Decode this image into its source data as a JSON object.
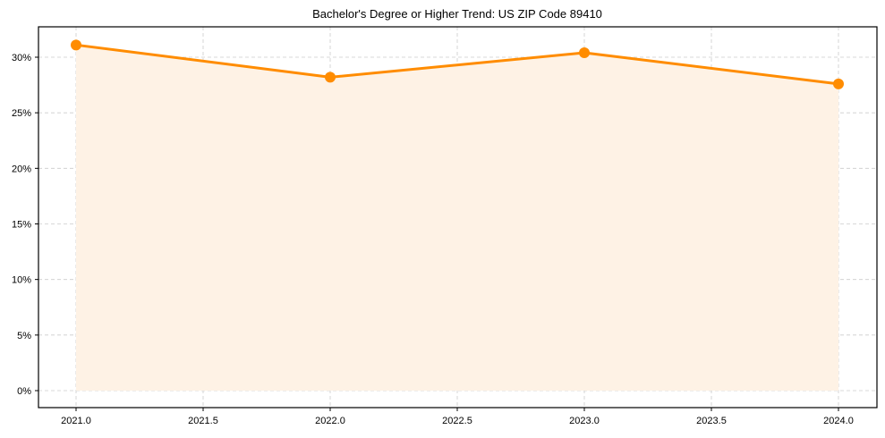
{
  "chart_data": {
    "type": "line",
    "title": "Bachelor's Degree or Higher Trend: US ZIP Code 89410",
    "xlabel": "",
    "ylabel": "",
    "x": [
      2021.0,
      2022.0,
      2023.0,
      2024.0
    ],
    "series": [
      {
        "name": "Bachelor's Degree or Higher",
        "values": [
          31.1,
          28.2,
          30.4,
          27.6
        ],
        "color": "#FF8C00",
        "fill": true,
        "fill_color": "#FEF2E5"
      }
    ],
    "xlim": [
      2020.85,
      2024.15
    ],
    "ylim": [
      -1.55,
      32.6
    ],
    "x_ticks": [
      "2021.0",
      "2021.5",
      "2022.0",
      "2022.5",
      "2023.0",
      "2023.5",
      "2024.0"
    ],
    "x_tick_values": [
      2021.0,
      2021.5,
      2022.0,
      2022.5,
      2023.0,
      2023.5,
      2024.0
    ],
    "y_ticks": [
      "0%",
      "5%",
      "10%",
      "15%",
      "20%",
      "25%",
      "30%"
    ],
    "y_tick_values": [
      0,
      5,
      10,
      15,
      20,
      25,
      30
    ],
    "grid": true,
    "grid_style": "dashed",
    "legend": "none"
  }
}
